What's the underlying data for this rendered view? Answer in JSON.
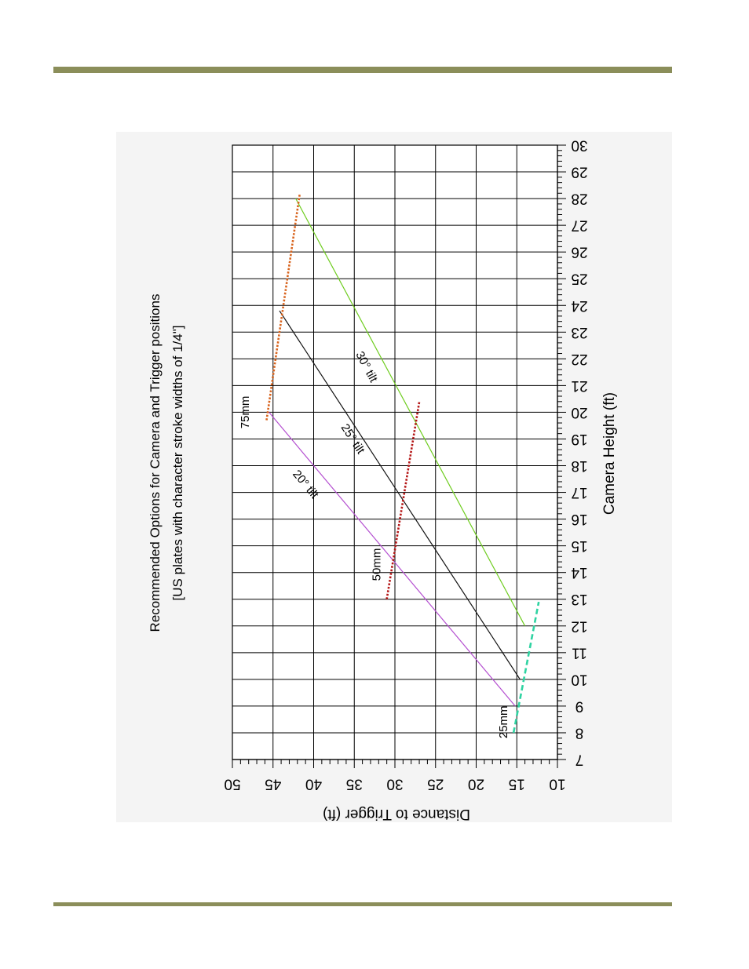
{
  "page": {
    "rule_color": "#8b8e5a"
  },
  "chart_data": {
    "type": "line",
    "title": "Recommended Options for Camera and Trigger positions",
    "subtitle": "[US plates with character stroke widths of 1/4\"]",
    "xlabel": "Camera Height (ft)",
    "ylabel": "Distance to Trigger (ft)",
    "xlim": [
      7,
      30
    ],
    "ylim": [
      10,
      50
    ],
    "x_ticks": [
      7,
      8,
      9,
      10,
      11,
      12,
      13,
      14,
      15,
      16,
      17,
      18,
      19,
      20,
      21,
      22,
      23,
      24,
      25,
      26,
      27,
      28,
      29,
      30
    ],
    "y_ticks": [
      10,
      15,
      20,
      25,
      30,
      35,
      40,
      45,
      50
    ],
    "grid": true,
    "rotation": "chart rotated 90 degrees clockwise",
    "series": [
      {
        "name": "20° tilt",
        "color": "#b44fd0",
        "style": "solid",
        "points": [
          [
            9.0,
            15.2
          ],
          [
            20.0,
            45.5
          ]
        ]
      },
      {
        "name": "25° tilt",
        "color": "#111111",
        "style": "solid",
        "points": [
          [
            10.0,
            14.6
          ],
          [
            23.8,
            44.2
          ]
        ]
      },
      {
        "name": "30° tilt",
        "color": "#6ecc1e",
        "style": "solid",
        "points": [
          [
            12.0,
            14.0
          ],
          [
            28.0,
            42.2
          ]
        ]
      },
      {
        "name": "25mm",
        "color": "#2fd3a2",
        "style": "dashed",
        "points": [
          [
            8.0,
            15.4
          ],
          [
            12.9,
            12.3
          ]
        ]
      },
      {
        "name": "50mm",
        "color": "#b51818",
        "style": "dotted",
        "points": [
          [
            13.0,
            31.0
          ],
          [
            20.4,
            27.0
          ]
        ]
      },
      {
        "name": "75mm",
        "color": "#d8641e",
        "style": "dotted",
        "points": [
          [
            19.7,
            45.8
          ],
          [
            28.2,
            41.7
          ]
        ]
      }
    ],
    "annotations": [
      {
        "text": "20° tilt",
        "x": 17.3,
        "y": 41.0
      },
      {
        "text": "25° tilt",
        "x": 19.0,
        "y": 35.2
      },
      {
        "text": "30° tilt",
        "x": 21.7,
        "y": 33.5
      },
      {
        "text": "25mm",
        "x": 8.4,
        "y": 16.6
      },
      {
        "text": "50mm",
        "x": 14.3,
        "y": 32.2
      },
      {
        "text": "75mm",
        "x": 20.0,
        "y": 48.4
      }
    ]
  }
}
